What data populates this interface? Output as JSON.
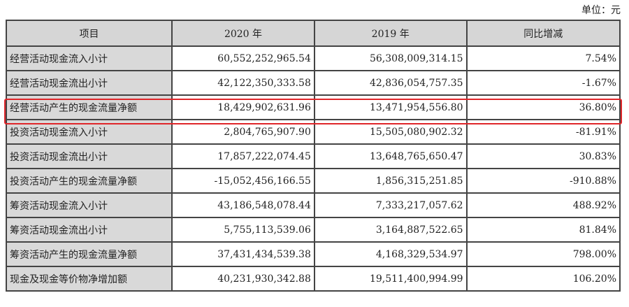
{
  "unit_label": "单位：元",
  "highlight_color": "#e0262a",
  "highlighted_row": 2,
  "headers": [
    "项目",
    "2020 年",
    "2019 年",
    "同比增减"
  ],
  "rows": [
    [
      "经营活动现金流入小计",
      "60,552,252,965.54",
      "56,308,009,314.15",
      "7.54%"
    ],
    [
      "经营活动现金流出小计",
      "42,122,350,333.58",
      "42,836,054,757.35",
      "-1.67%"
    ],
    [
      "经营活动产生的现金流量净额",
      "18,429,902,631.96",
      "13,471,954,556.80",
      "36.80%"
    ],
    [
      "投资活动现金流入小计",
      "2,804,765,907.90",
      "15,505,080,902.32",
      "-81.91%"
    ],
    [
      "投资活动现金流出小计",
      "17,857,222,074.45",
      "13,648,765,650.47",
      "30.83%"
    ],
    [
      "投资活动产生的现金流量净额",
      "-15,052,456,166.55",
      "1,856,315,251.85",
      "-910.88%"
    ],
    [
      "筹资活动现金流入小计",
      "43,186,548,078.44",
      "7,333,217,057.62",
      "488.92%"
    ],
    [
      "筹资活动现金流出小计",
      "5,755,113,539.06",
      "3,164,887,522.65",
      "81.84%"
    ],
    [
      "筹资活动产生的现金流量净额",
      "37,431,434,539.38",
      "4,168,329,534.97",
      "798.00%"
    ],
    [
      "现金及现金等价物净增加额",
      "40,231,930,342.88",
      "19,511,400,994.99",
      "106.20%"
    ]
  ]
}
